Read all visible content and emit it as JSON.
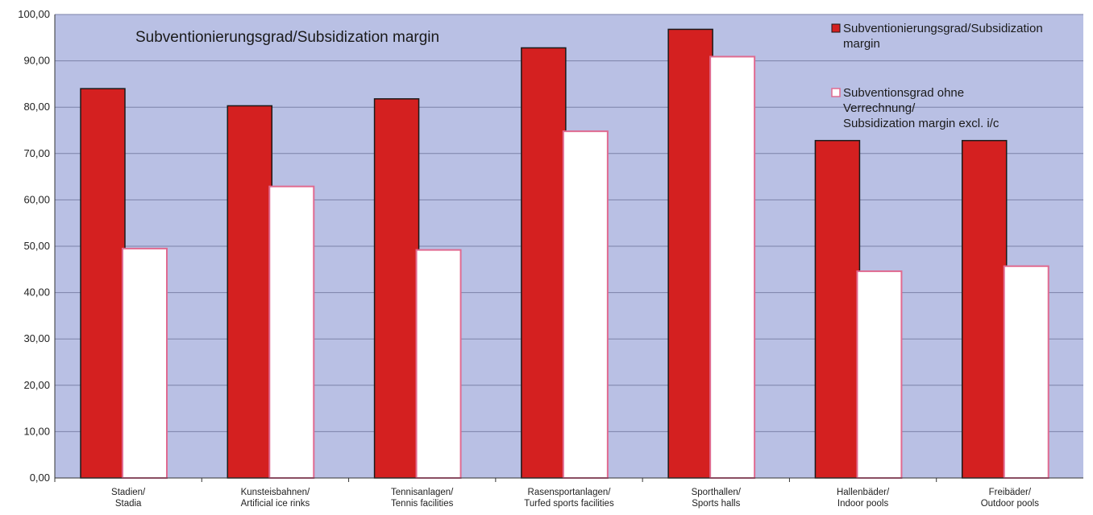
{
  "chart_data": {
    "type": "bar",
    "title": "Subventionierungsgrad/Subsidization margin",
    "xlabel": "",
    "ylabel": "",
    "ylim": [
      0,
      100
    ],
    "yticks": [
      "0,00",
      "10,00",
      "20,00",
      "30,00",
      "40,00",
      "50,00",
      "60,00",
      "70,00",
      "80,00",
      "90,00",
      "100,00"
    ],
    "grid": true,
    "legend_position": "top-right",
    "categories": [
      [
        "Stadien/",
        "Stadia"
      ],
      [
        "Kunsteisbahnen/",
        "Artificial ice rinks"
      ],
      [
        "Tennisanlagen/",
        "Tennis facilities"
      ],
      [
        "Rasensportanlagen/",
        "Turfed sports facilities"
      ],
      [
        "Sporthallen/",
        "Sports halls"
      ],
      [
        "Hallenbäder/",
        "Indoor pools"
      ],
      [
        "Freibäder/",
        "Outdoor pools"
      ]
    ],
    "series": [
      {
        "name": [
          "Subventionierungsgrad/Subsidization",
          "margin"
        ],
        "color": "#d42020",
        "stroke": "#1a1a1a",
        "values": [
          84.0,
          80.3,
          81.8,
          92.8,
          96.8,
          72.8,
          72.8
        ]
      },
      {
        "name": [
          "Subventionsgrad ohne",
          "Verrechnung/",
          "Subsidization margin excl. i/c"
        ],
        "color": "#ffffff",
        "stroke": "#e06a90",
        "values": [
          49.5,
          62.9,
          49.2,
          74.8,
          90.9,
          44.6,
          45.7
        ]
      }
    ],
    "colors": {
      "plot_background": "#b9c0e4",
      "gridline": "#7c82a8"
    }
  }
}
